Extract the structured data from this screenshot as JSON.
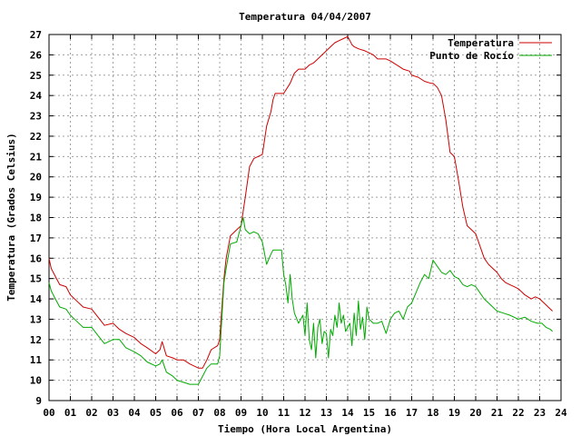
{
  "chart_data": {
    "type": "line",
    "title": "Temperatura 04/04/2007",
    "xlabel": "Tiempo (Hora Local Argentina)",
    "ylabel": "Temperatura (Grados Celsius)",
    "xlim": [
      0,
      24
    ],
    "ylim": [
      9,
      27
    ],
    "grid": true,
    "legend_position": "top-right",
    "x_tick_labels": [
      "00",
      "01",
      "02",
      "03",
      "04",
      "05",
      "06",
      "07",
      "08",
      "09",
      "10",
      "11",
      "12",
      "13",
      "14",
      "15",
      "16",
      "17",
      "18",
      "19",
      "20",
      "21",
      "22",
      "23",
      "24"
    ],
    "y_tick_labels": [
      "9",
      "10",
      "11",
      "12",
      "13",
      "14",
      "15",
      "16",
      "17",
      "18",
      "19",
      "20",
      "21",
      "22",
      "23",
      "24",
      "25",
      "26",
      "27"
    ],
    "series": [
      {
        "name": "Temperatura",
        "color": "#cc0000",
        "x": [
          0,
          0.1,
          0.3,
          0.5,
          0.8,
          1.0,
          1.3,
          1.6,
          2.0,
          2.3,
          2.6,
          3.0,
          3.3,
          3.6,
          4.0,
          4.3,
          4.6,
          5.0,
          5.2,
          5.3,
          5.5,
          5.8,
          6.0,
          6.3,
          6.6,
          7.0,
          7.2,
          7.4,
          7.6,
          7.9,
          8.0,
          8.1,
          8.2,
          8.3,
          8.5,
          8.8,
          9.0,
          9.2,
          9.4,
          9.6,
          10.0,
          10.2,
          10.4,
          10.5,
          10.6,
          10.8,
          11.0,
          11.3,
          11.5,
          11.7,
          12.0,
          12.2,
          12.4,
          12.6,
          12.8,
          13.0,
          13.2,
          13.4,
          13.6,
          13.8,
          14.0,
          14.1,
          14.2,
          14.3,
          14.5,
          14.8,
          15.0,
          15.2,
          15.4,
          15.6,
          15.8,
          16.0,
          16.3,
          16.6,
          16.9,
          17.0,
          17.3,
          17.6,
          17.9,
          18.0,
          18.2,
          18.4,
          18.6,
          18.8,
          19.0,
          19.2,
          19.4,
          19.6,
          19.8,
          20.0,
          20.2,
          20.4,
          20.6,
          20.8,
          21.0,
          21.2,
          21.4,
          21.6,
          21.8,
          22.0,
          22.3,
          22.6,
          22.8,
          23.0,
          23.2,
          23.4,
          23.6
        ],
        "y": [
          16.0,
          15.5,
          15.1,
          14.7,
          14.6,
          14.2,
          13.9,
          13.6,
          13.5,
          13.1,
          12.7,
          12.8,
          12.5,
          12.3,
          12.1,
          11.8,
          11.6,
          11.3,
          11.5,
          11.9,
          11.2,
          11.1,
          11.0,
          11.0,
          10.8,
          10.6,
          10.6,
          11.0,
          11.5,
          11.7,
          12.0,
          13.5,
          15.0,
          16.0,
          17.1,
          17.4,
          17.6,
          19.0,
          20.5,
          20.9,
          21.1,
          22.5,
          23.2,
          23.8,
          24.1,
          24.1,
          24.1,
          24.6,
          25.1,
          25.3,
          25.3,
          25.5,
          25.6,
          25.8,
          26.0,
          26.2,
          26.4,
          26.6,
          26.7,
          26.8,
          26.9,
          26.7,
          26.5,
          26.4,
          26.3,
          26.2,
          26.1,
          26.0,
          25.8,
          25.8,
          25.8,
          25.7,
          25.5,
          25.3,
          25.2,
          25.0,
          24.9,
          24.7,
          24.6,
          24.6,
          24.4,
          24.0,
          22.8,
          21.2,
          21.0,
          19.8,
          18.5,
          17.6,
          17.4,
          17.2,
          16.6,
          16.0,
          15.7,
          15.5,
          15.3,
          15.0,
          14.8,
          14.7,
          14.6,
          14.5,
          14.2,
          14.0,
          14.1,
          14.0,
          13.8,
          13.6,
          13.4
        ]
      },
      {
        "name": "Punto de Rocío",
        "color": "#00aa00",
        "x": [
          0,
          0.1,
          0.3,
          0.5,
          0.8,
          1.0,
          1.3,
          1.6,
          2.0,
          2.3,
          2.6,
          3.0,
          3.3,
          3.6,
          4.0,
          4.3,
          4.6,
          5.0,
          5.2,
          5.3,
          5.5,
          5.8,
          6.0,
          6.3,
          6.6,
          7.0,
          7.2,
          7.4,
          7.6,
          7.9,
          8.0,
          8.1,
          8.2,
          8.3,
          8.5,
          8.8,
          9.0,
          9.1,
          9.2,
          9.4,
          9.6,
          9.8,
          10.0,
          10.2,
          10.4,
          10.5,
          10.7,
          10.9,
          11.0,
          11.1,
          11.2,
          11.3,
          11.4,
          11.5,
          11.7,
          11.9,
          12.0,
          12.1,
          12.2,
          12.3,
          12.4,
          12.5,
          12.6,
          12.7,
          12.8,
          12.9,
          13.0,
          13.1,
          13.2,
          13.3,
          13.4,
          13.5,
          13.6,
          13.7,
          13.8,
          13.9,
          14.0,
          14.1,
          14.2,
          14.3,
          14.4,
          14.5,
          14.6,
          14.7,
          14.8,
          14.9,
          15.0,
          15.2,
          15.4,
          15.6,
          15.8,
          16.0,
          16.2,
          16.4,
          16.6,
          16.8,
          17.0,
          17.2,
          17.4,
          17.6,
          17.8,
          18.0,
          18.2,
          18.4,
          18.6,
          18.8,
          19.0,
          19.2,
          19.4,
          19.6,
          19.8,
          20.0,
          20.2,
          20.4,
          20.6,
          20.8,
          21.0,
          21.3,
          21.6,
          22.0,
          22.3,
          22.6,
          22.9,
          23.1,
          23.3,
          23.5,
          23.6
        ],
        "y": [
          14.8,
          14.4,
          14.0,
          13.6,
          13.5,
          13.2,
          12.9,
          12.6,
          12.6,
          12.2,
          11.8,
          12.0,
          12.0,
          11.6,
          11.4,
          11.2,
          10.9,
          10.7,
          10.8,
          11.0,
          10.4,
          10.2,
          10.0,
          9.9,
          9.8,
          9.8,
          10.2,
          10.6,
          10.8,
          10.8,
          11.2,
          13.0,
          14.8,
          15.5,
          16.7,
          16.8,
          17.6,
          18.0,
          17.4,
          17.2,
          17.3,
          17.2,
          16.8,
          15.7,
          16.2,
          16.4,
          16.4,
          16.4,
          15.2,
          14.7,
          13.8,
          15.2,
          14.0,
          13.3,
          12.8,
          13.2,
          12.2,
          13.8,
          12.0,
          11.5,
          12.8,
          11.1,
          12.6,
          13.0,
          11.8,
          12.4,
          12.3,
          11.1,
          12.5,
          12.2,
          13.2,
          12.6,
          13.8,
          12.8,
          13.2,
          12.4,
          12.6,
          12.8,
          11.7,
          13.3,
          12.2,
          13.9,
          12.5,
          13.1,
          12.0,
          13.6,
          13.0,
          12.8,
          12.8,
          12.9,
          12.3,
          13.0,
          13.3,
          13.4,
          13.0,
          13.6,
          13.8,
          14.3,
          14.8,
          15.2,
          15.0,
          15.9,
          15.6,
          15.3,
          15.2,
          15.4,
          15.1,
          15.0,
          14.7,
          14.6,
          14.7,
          14.6,
          14.3,
          14.0,
          13.8,
          13.6,
          13.4,
          13.3,
          13.2,
          13.0,
          13.1,
          12.9,
          12.8,
          12.8,
          12.6,
          12.5,
          12.4
        ]
      }
    ]
  }
}
